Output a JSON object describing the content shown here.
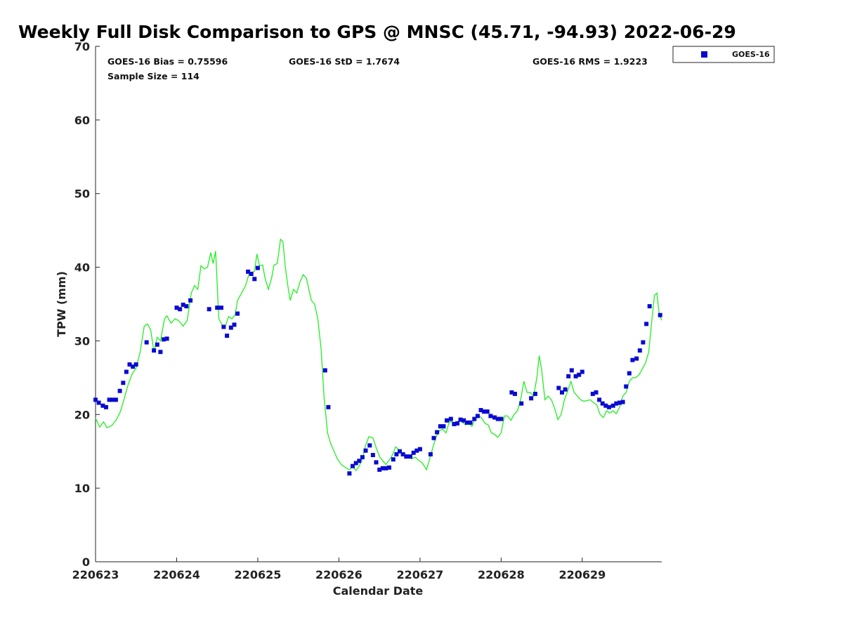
{
  "chart_data": {
    "type": "scatter",
    "title": "Weekly Full Disk Comparison to GPS @ MNSC (45.71, -94.93) 2022-06-29",
    "xlabel": "Calendar Date",
    "ylabel": "TPW (mm)",
    "xlim": [
      0,
      6.98
    ],
    "ylim": [
      0,
      70
    ],
    "yticks": [
      0,
      10,
      20,
      30,
      40,
      50,
      60,
      70
    ],
    "xticks": [
      {
        "value": 0,
        "label": "220623"
      },
      {
        "value": 1,
        "label": "220624"
      },
      {
        "value": 2,
        "label": "220625"
      },
      {
        "value": 3,
        "label": "220626"
      },
      {
        "value": 4,
        "label": "220627"
      },
      {
        "value": 5,
        "label": "220628"
      },
      {
        "value": 6,
        "label": "220629"
      }
    ],
    "x_units": "days since 220623 00Z",
    "grid": false,
    "legend_position": "outside-top-right",
    "stats": {
      "bias": "GOES-16 Bias = 0.75596",
      "std": "GOES-16 StD = 1.7674",
      "rms": "GOES-16 RMS = 1.9223",
      "sample_size": "Sample Size = 114"
    },
    "series": [
      {
        "name": "GOES-16",
        "kind": "scatter",
        "marker": "square",
        "color": "#0a0ad2",
        "points": [
          [
            0.0,
            22.0
          ],
          [
            0.04,
            21.6
          ],
          [
            0.09,
            21.2
          ],
          [
            0.13,
            21.0
          ],
          [
            0.17,
            22.0
          ],
          [
            0.21,
            22.0
          ],
          [
            0.25,
            22.0
          ],
          [
            0.3,
            23.2
          ],
          [
            0.34,
            24.3
          ],
          [
            0.38,
            25.8
          ],
          [
            0.42,
            26.8
          ],
          [
            0.46,
            26.5
          ],
          [
            0.5,
            26.8
          ],
          [
            0.63,
            29.8
          ],
          [
            0.72,
            28.7
          ],
          [
            0.76,
            29.5
          ],
          [
            0.8,
            28.5
          ],
          [
            0.84,
            30.2
          ],
          [
            0.88,
            30.3
          ],
          [
            1.0,
            34.5
          ],
          [
            1.04,
            34.3
          ],
          [
            1.08,
            34.9
          ],
          [
            1.12,
            34.7
          ],
          [
            1.17,
            35.5
          ],
          [
            1.4,
            34.3
          ],
          [
            1.5,
            34.5
          ],
          [
            1.55,
            34.5
          ],
          [
            1.58,
            31.9
          ],
          [
            1.62,
            30.7
          ],
          [
            1.67,
            31.8
          ],
          [
            1.71,
            32.2
          ],
          [
            1.75,
            33.7
          ],
          [
            1.88,
            39.4
          ],
          [
            1.92,
            39.1
          ],
          [
            1.96,
            38.4
          ],
          [
            2.0,
            39.9
          ],
          [
            2.83,
            26.0
          ],
          [
            2.87,
            21.0
          ],
          [
            3.13,
            12.0
          ],
          [
            3.17,
            13.0
          ],
          [
            3.21,
            13.4
          ],
          [
            3.25,
            13.7
          ],
          [
            3.29,
            14.2
          ],
          [
            3.33,
            15.1
          ],
          [
            3.38,
            15.8
          ],
          [
            3.42,
            14.5
          ],
          [
            3.46,
            13.5
          ],
          [
            3.5,
            12.5
          ],
          [
            3.54,
            12.7
          ],
          [
            3.58,
            12.7
          ],
          [
            3.62,
            12.8
          ],
          [
            3.67,
            13.9
          ],
          [
            3.71,
            14.6
          ],
          [
            3.75,
            15.0
          ],
          [
            3.79,
            14.6
          ],
          [
            3.83,
            14.3
          ],
          [
            3.88,
            14.3
          ],
          [
            3.92,
            14.8
          ],
          [
            3.96,
            15.1
          ],
          [
            4.0,
            15.3
          ],
          [
            4.13,
            14.6
          ],
          [
            4.17,
            16.8
          ],
          [
            4.21,
            17.6
          ],
          [
            4.25,
            18.4
          ],
          [
            4.29,
            18.4
          ],
          [
            4.33,
            19.2
          ],
          [
            4.38,
            19.4
          ],
          [
            4.42,
            18.7
          ],
          [
            4.46,
            18.8
          ],
          [
            4.5,
            19.3
          ],
          [
            4.54,
            19.2
          ],
          [
            4.58,
            18.9
          ],
          [
            4.62,
            18.9
          ],
          [
            4.67,
            19.4
          ],
          [
            4.71,
            19.8
          ],
          [
            4.75,
            20.6
          ],
          [
            4.79,
            20.4
          ],
          [
            4.83,
            20.4
          ],
          [
            4.87,
            19.8
          ],
          [
            4.92,
            19.6
          ],
          [
            4.96,
            19.4
          ],
          [
            5.0,
            19.4
          ],
          [
            5.13,
            23.0
          ],
          [
            5.17,
            22.8
          ],
          [
            5.25,
            21.5
          ],
          [
            5.37,
            22.2
          ],
          [
            5.42,
            22.8
          ],
          [
            5.71,
            23.6
          ],
          [
            5.75,
            23.0
          ],
          [
            5.79,
            23.4
          ],
          [
            5.83,
            25.2
          ],
          [
            5.87,
            26.0
          ],
          [
            5.92,
            25.2
          ],
          [
            5.96,
            25.4
          ],
          [
            6.0,
            25.8
          ],
          [
            6.13,
            22.8
          ],
          [
            6.17,
            23.0
          ],
          [
            6.21,
            22.0
          ],
          [
            6.25,
            21.5
          ],
          [
            6.29,
            21.2
          ],
          [
            6.33,
            21.0
          ],
          [
            6.38,
            21.2
          ],
          [
            6.42,
            21.5
          ],
          [
            6.46,
            21.6
          ],
          [
            6.5,
            21.7
          ],
          [
            6.54,
            23.8
          ],
          [
            6.58,
            25.6
          ],
          [
            6.62,
            27.4
          ],
          [
            6.67,
            27.6
          ],
          [
            6.71,
            28.7
          ],
          [
            6.75,
            29.8
          ],
          [
            6.79,
            32.3
          ],
          [
            6.83,
            34.7
          ],
          [
            6.96,
            33.5
          ]
        ]
      },
      {
        "kind": "line",
        "color": "#22ee22",
        "points": [
          [
            0.0,
            19.5
          ],
          [
            0.05,
            18.3
          ],
          [
            0.1,
            19.0
          ],
          [
            0.14,
            18.2
          ],
          [
            0.2,
            18.5
          ],
          [
            0.25,
            19.2
          ],
          [
            0.3,
            20.2
          ],
          [
            0.35,
            22.0
          ],
          [
            0.4,
            24.0
          ],
          [
            0.45,
            25.5
          ],
          [
            0.5,
            26.3
          ],
          [
            0.55,
            28.5
          ],
          [
            0.6,
            32.0
          ],
          [
            0.64,
            32.3
          ],
          [
            0.68,
            31.5
          ],
          [
            0.72,
            28.5
          ],
          [
            0.76,
            30.5
          ],
          [
            0.8,
            30.0
          ],
          [
            0.85,
            33.0
          ],
          [
            0.88,
            33.4
          ],
          [
            0.93,
            32.4
          ],
          [
            0.98,
            33.0
          ],
          [
            1.03,
            32.7
          ],
          [
            1.08,
            32.0
          ],
          [
            1.13,
            32.8
          ],
          [
            1.18,
            36.5
          ],
          [
            1.22,
            37.5
          ],
          [
            1.26,
            37.0
          ],
          [
            1.3,
            40.2
          ],
          [
            1.34,
            39.8
          ],
          [
            1.38,
            40.0
          ],
          [
            1.42,
            42.0
          ],
          [
            1.45,
            40.5
          ],
          [
            1.48,
            42.2
          ],
          [
            1.52,
            33.0
          ],
          [
            1.56,
            32.2
          ],
          [
            1.6,
            32.0
          ],
          [
            1.64,
            33.3
          ],
          [
            1.68,
            33.0
          ],
          [
            1.72,
            33.5
          ],
          [
            1.75,
            35.5
          ],
          [
            1.8,
            36.5
          ],
          [
            1.85,
            37.5
          ],
          [
            1.89,
            39.0
          ],
          [
            1.92,
            39.2
          ],
          [
            1.96,
            39.5
          ],
          [
            1.99,
            41.8
          ],
          [
            2.02,
            40.2
          ],
          [
            2.06,
            40.3
          ],
          [
            2.09,
            38.5
          ],
          [
            2.13,
            37.0
          ],
          [
            2.17,
            38.5
          ],
          [
            2.2,
            40.3
          ],
          [
            2.24,
            40.5
          ],
          [
            2.28,
            43.8
          ],
          [
            2.31,
            43.5
          ],
          [
            2.34,
            40.0
          ],
          [
            2.37,
            37.5
          ],
          [
            2.4,
            35.5
          ],
          [
            2.44,
            37.0
          ],
          [
            2.48,
            36.5
          ],
          [
            2.52,
            38.0
          ],
          [
            2.56,
            39.0
          ],
          [
            2.6,
            38.5
          ],
          [
            2.63,
            37.0
          ],
          [
            2.66,
            35.5
          ],
          [
            2.7,
            35.0
          ],
          [
            2.74,
            33.0
          ],
          [
            2.78,
            29.0
          ],
          [
            2.82,
            22.0
          ],
          [
            2.86,
            17.5
          ],
          [
            2.9,
            16.0
          ],
          [
            2.94,
            15.0
          ],
          [
            2.98,
            14.0
          ],
          [
            3.03,
            13.2
          ],
          [
            3.08,
            12.8
          ],
          [
            3.13,
            12.5
          ],
          [
            3.17,
            12.9
          ],
          [
            3.21,
            12.4
          ],
          [
            3.25,
            13.0
          ],
          [
            3.29,
            14.0
          ],
          [
            3.33,
            15.8
          ],
          [
            3.37,
            17.0
          ],
          [
            3.42,
            16.8
          ],
          [
            3.46,
            15.5
          ],
          [
            3.5,
            14.3
          ],
          [
            3.54,
            13.7
          ],
          [
            3.58,
            13.2
          ],
          [
            3.62,
            13.8
          ],
          [
            3.66,
            14.5
          ],
          [
            3.7,
            15.6
          ],
          [
            3.74,
            15.2
          ],
          [
            3.78,
            14.8
          ],
          [
            3.82,
            14.6
          ],
          [
            3.86,
            14.2
          ],
          [
            3.9,
            14.0
          ],
          [
            3.94,
            14.2
          ],
          [
            3.98,
            13.8
          ],
          [
            4.03,
            13.4
          ],
          [
            4.08,
            12.5
          ],
          [
            4.12,
            14.0
          ],
          [
            4.16,
            15.6
          ],
          [
            4.2,
            17.0
          ],
          [
            4.24,
            17.8
          ],
          [
            4.28,
            18.0
          ],
          [
            4.32,
            17.5
          ],
          [
            4.36,
            19.0
          ],
          [
            4.4,
            19.0
          ],
          [
            4.44,
            18.8
          ],
          [
            4.48,
            19.2
          ],
          [
            4.52,
            19.0
          ],
          [
            4.56,
            18.6
          ],
          [
            4.6,
            18.8
          ],
          [
            4.64,
            18.4
          ],
          [
            4.68,
            19.5
          ],
          [
            4.72,
            19.9
          ],
          [
            4.76,
            19.5
          ],
          [
            4.8,
            18.8
          ],
          [
            4.84,
            18.6
          ],
          [
            4.88,
            17.5
          ],
          [
            4.92,
            17.3
          ],
          [
            4.96,
            16.9
          ],
          [
            5.0,
            17.5
          ],
          [
            5.04,
            19.8
          ],
          [
            5.08,
            19.8
          ],
          [
            5.12,
            19.2
          ],
          [
            5.16,
            20.0
          ],
          [
            5.2,
            20.5
          ],
          [
            5.24,
            22.0
          ],
          [
            5.28,
            24.5
          ],
          [
            5.32,
            23.0
          ],
          [
            5.36,
            23.0
          ],
          [
            5.4,
            22.5
          ],
          [
            5.44,
            25.0
          ],
          [
            5.47,
            28.0
          ],
          [
            5.5,
            26.0
          ],
          [
            5.54,
            22.0
          ],
          [
            5.58,
            22.5
          ],
          [
            5.62,
            22.0
          ],
          [
            5.66,
            20.8
          ],
          [
            5.7,
            19.3
          ],
          [
            5.74,
            20.0
          ],
          [
            5.78,
            22.0
          ],
          [
            5.82,
            23.2
          ],
          [
            5.86,
            24.5
          ],
          [
            5.9,
            23.0
          ],
          [
            5.94,
            22.5
          ],
          [
            5.98,
            22.0
          ],
          [
            6.02,
            21.8
          ],
          [
            6.06,
            21.9
          ],
          [
            6.1,
            22.0
          ],
          [
            6.14,
            21.6
          ],
          [
            6.18,
            21.3
          ],
          [
            6.22,
            20.0
          ],
          [
            6.26,
            19.6
          ],
          [
            6.3,
            20.5
          ],
          [
            6.34,
            20.2
          ],
          [
            6.38,
            20.5
          ],
          [
            6.42,
            20.1
          ],
          [
            6.46,
            21.0
          ],
          [
            6.5,
            22.5
          ],
          [
            6.54,
            23.0
          ],
          [
            6.58,
            24.5
          ],
          [
            6.62,
            25.0
          ],
          [
            6.66,
            25.0
          ],
          [
            6.7,
            25.4
          ],
          [
            6.74,
            26.2
          ],
          [
            6.78,
            27.0
          ],
          [
            6.82,
            28.5
          ],
          [
            6.86,
            33.0
          ],
          [
            6.89,
            36.2
          ],
          [
            6.92,
            36.5
          ],
          [
            6.95,
            33.5
          ],
          [
            6.98,
            32.8
          ]
        ]
      }
    ]
  }
}
